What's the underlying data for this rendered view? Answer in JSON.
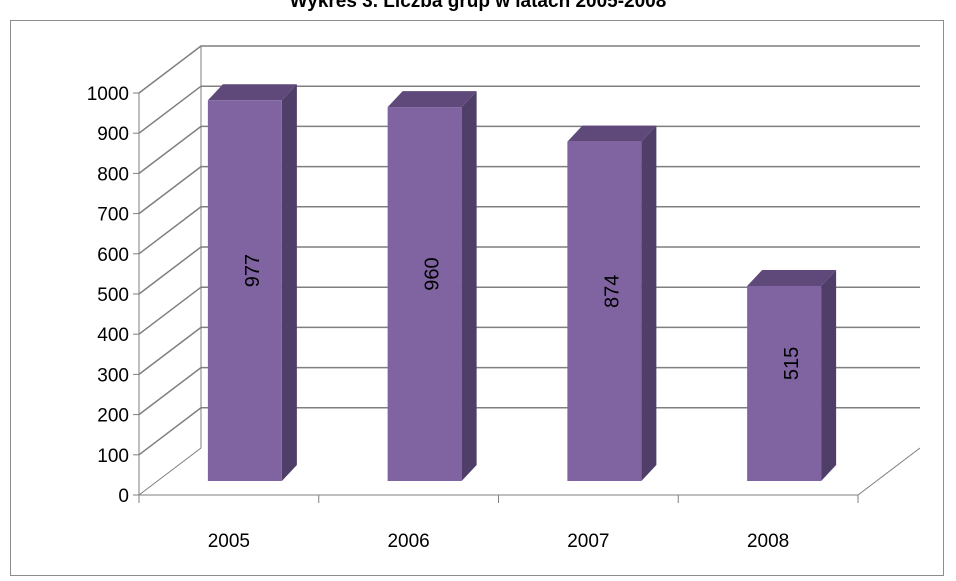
{
  "chart_data": {
    "type": "bar",
    "title": "Wykres 3. Liczba grup w latach 2005-2008",
    "xlabel": "",
    "ylabel": "",
    "categories": [
      "2005",
      "2006",
      "2007",
      "2008"
    ],
    "values": [
      977,
      960,
      874,
      515
    ],
    "data_labels": [
      "977",
      "960",
      "874",
      "515"
    ],
    "ylim": [
      0,
      1000
    ],
    "yticks": [
      0,
      100,
      200,
      300,
      400,
      500,
      600,
      700,
      800,
      900,
      1000
    ],
    "grid": true,
    "legend": "none",
    "style": "3d-column",
    "colors": {
      "front": "#8064a2",
      "top": "#5f497a",
      "side": "#4f3e67",
      "grid": "#7f7f7f"
    }
  }
}
